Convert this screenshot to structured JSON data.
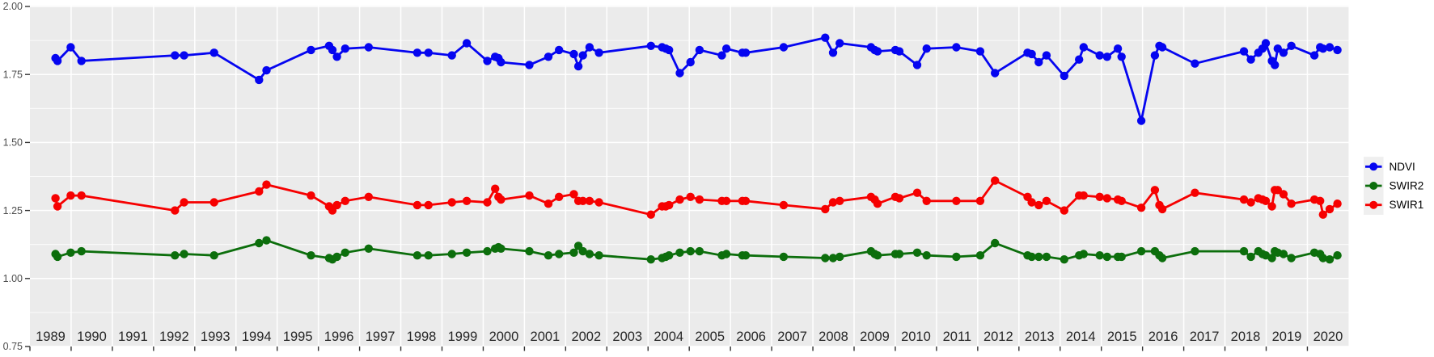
{
  "chart_data": {
    "type": "line",
    "title": "",
    "xlabel": "",
    "ylabel": "",
    "x_axis": {
      "range": [
        1989,
        2021
      ],
      "tick_years": [
        "1989",
        "1990",
        "1991",
        "1992",
        "1993",
        "1994",
        "1995",
        "1996",
        "1997",
        "1998",
        "1999",
        "2000",
        "2001",
        "2002",
        "2003",
        "2004",
        "2005",
        "2006",
        "2007",
        "2008",
        "2009",
        "2010",
        "2011",
        "2012",
        "2013",
        "2014",
        "2015",
        "2016",
        "2017",
        "2018",
        "2019",
        "2020"
      ]
    },
    "y_axis": {
      "range": [
        0.75,
        2.0
      ],
      "tick_values": [
        0.75,
        1.0,
        1.25,
        1.5,
        1.75,
        2.0
      ],
      "tick_labels": [
        "0.75",
        "1.00",
        "1.25",
        "1.50",
        "1.75",
        "2.00"
      ],
      "minor_tick_values": [
        0.875,
        1.125,
        1.375,
        1.625,
        1.875
      ]
    },
    "grid": "on",
    "legend": {
      "position": "right",
      "entries": [
        "NDVI",
        "SWIR2",
        "SWIR1"
      ]
    },
    "x": [
      1989.62,
      1989.67,
      1989.99,
      1990.25,
      1992.52,
      1992.74,
      1993.47,
      1994.56,
      1994.74,
      1995.82,
      1996.26,
      1996.34,
      1996.45,
      1996.65,
      1997.22,
      1998.4,
      1998.67,
      1999.24,
      1999.6,
      2000.1,
      2000.29,
      2000.37,
      2000.43,
      2001.12,
      2001.58,
      2001.84,
      2002.2,
      2002.31,
      2002.42,
      2002.58,
      2002.81,
      2004.07,
      2004.34,
      2004.43,
      2004.51,
      2004.77,
      2005.03,
      2005.25,
      2005.79,
      2005.9,
      2006.29,
      2006.37,
      2007.29,
      2008.3,
      2008.49,
      2008.65,
      2009.41,
      2009.5,
      2009.57,
      2010.0,
      2010.1,
      2010.53,
      2010.76,
      2011.48,
      2012.06,
      2012.42,
      2013.21,
      2013.31,
      2013.48,
      2013.67,
      2014.1,
      2014.46,
      2014.57,
      2014.96,
      2015.14,
      2015.4,
      2015.49,
      2015.97,
      2016.3,
      2016.41,
      2016.48,
      2017.27,
      2018.46,
      2018.63,
      2018.81,
      2018.91,
      2018.99,
      2019.14,
      2019.21,
      2019.28,
      2019.42,
      2019.61,
      2020.17,
      2020.31,
      2020.38,
      2020.54,
      2020.73
    ],
    "series": [
      {
        "name": "NDVI",
        "color": "#0505f0",
        "values": [
          1.81,
          1.8,
          1.85,
          1.8,
          1.82,
          1.82,
          1.83,
          1.73,
          1.765,
          1.84,
          1.855,
          1.84,
          1.815,
          1.845,
          1.85,
          1.83,
          1.83,
          1.82,
          1.865,
          1.8,
          1.815,
          1.81,
          1.795,
          1.785,
          1.815,
          1.84,
          1.825,
          1.78,
          1.82,
          1.85,
          1.83,
          1.855,
          1.85,
          1.845,
          1.84,
          1.755,
          1.795,
          1.84,
          1.82,
          1.845,
          1.83,
          1.83,
          1.85,
          1.885,
          1.83,
          1.865,
          1.85,
          1.84,
          1.835,
          1.84,
          1.835,
          1.785,
          1.845,
          1.85,
          1.835,
          1.755,
          1.83,
          1.825,
          1.795,
          1.82,
          1.745,
          1.805,
          1.85,
          1.82,
          1.815,
          1.845,
          1.815,
          1.58,
          1.82,
          1.855,
          1.85,
          1.79,
          1.835,
          1.805,
          1.83,
          1.845,
          1.865,
          1.8,
          1.785,
          1.845,
          1.83,
          1.855,
          1.82,
          1.85,
          1.845,
          1.85,
          1.84
        ]
      },
      {
        "name": "SWIR2",
        "color": "#0c6e0c",
        "values": [
          1.09,
          1.08,
          1.095,
          1.1,
          1.085,
          1.09,
          1.085,
          1.13,
          1.14,
          1.085,
          1.075,
          1.07,
          1.08,
          1.095,
          1.11,
          1.085,
          1.085,
          1.09,
          1.095,
          1.1,
          1.11,
          1.115,
          1.11,
          1.1,
          1.085,
          1.09,
          1.095,
          1.12,
          1.1,
          1.09,
          1.085,
          1.07,
          1.075,
          1.08,
          1.085,
          1.095,
          1.1,
          1.1,
          1.085,
          1.09,
          1.085,
          1.085,
          1.08,
          1.075,
          1.075,
          1.08,
          1.1,
          1.09,
          1.085,
          1.09,
          1.09,
          1.095,
          1.085,
          1.08,
          1.085,
          1.13,
          1.085,
          1.08,
          1.08,
          1.08,
          1.07,
          1.085,
          1.09,
          1.085,
          1.08,
          1.08,
          1.08,
          1.1,
          1.1,
          1.085,
          1.075,
          1.1,
          1.1,
          1.08,
          1.1,
          1.09,
          1.085,
          1.075,
          1.1,
          1.095,
          1.09,
          1.075,
          1.095,
          1.09,
          1.075,
          1.07,
          1.085
        ]
      },
      {
        "name": "SWIR1",
        "color": "#f60000",
        "values": [
          1.295,
          1.265,
          1.305,
          1.305,
          1.25,
          1.28,
          1.28,
          1.32,
          1.345,
          1.305,
          1.265,
          1.25,
          1.27,
          1.285,
          1.3,
          1.27,
          1.27,
          1.28,
          1.285,
          1.28,
          1.33,
          1.3,
          1.29,
          1.305,
          1.275,
          1.3,
          1.31,
          1.285,
          1.285,
          1.285,
          1.28,
          1.235,
          1.265,
          1.265,
          1.27,
          1.29,
          1.3,
          1.29,
          1.285,
          1.285,
          1.285,
          1.285,
          1.27,
          1.255,
          1.28,
          1.285,
          1.3,
          1.29,
          1.275,
          1.3,
          1.295,
          1.315,
          1.285,
          1.285,
          1.285,
          1.36,
          1.3,
          1.28,
          1.27,
          1.285,
          1.25,
          1.305,
          1.305,
          1.3,
          1.295,
          1.29,
          1.285,
          1.26,
          1.325,
          1.27,
          1.255,
          1.315,
          1.29,
          1.28,
          1.295,
          1.29,
          1.285,
          1.265,
          1.325,
          1.325,
          1.31,
          1.275,
          1.29,
          1.285,
          1.235,
          1.255,
          1.275
        ]
      }
    ],
    "style": {
      "panel_background": "#EBEBEB",
      "grid_color": "#FFFFFF",
      "y_axis_text_color": "#4D4D4D",
      "x_axis_text_color": "#262626",
      "tick_color": "#333333",
      "legend_key_background": "#EFEFEF",
      "legend_text_color": "#000000"
    }
  }
}
